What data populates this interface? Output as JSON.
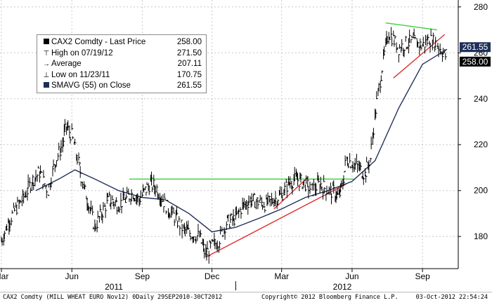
{
  "legend": {
    "rows": [
      {
        "icon": "black-square-icon",
        "label": "CAX2 Comdty - Last Price",
        "value": "258.00"
      },
      {
        "icon": "high-marker-icon",
        "label": "High on 07/19/12",
        "value": "271.50"
      },
      {
        "icon": "average-marker-icon",
        "label": "Average",
        "value": "207.11"
      },
      {
        "icon": "low-marker-icon",
        "label": "Low on 11/23/11",
        "value": "170.75"
      },
      {
        "icon": "navy-square-icon",
        "label": "SMAVG (55) on Close",
        "value": "261.55"
      }
    ]
  },
  "footer": {
    "left": "CAX2 Comdty (MILL WHEAT EURO  Nov12) 0Daily 29SEP2010-30CT2012",
    "center": "Copyright© 2012 Bloomberg Finance L.P.",
    "right": "03-Oct-2012 22:54:24"
  },
  "colors": {
    "price": "#000000",
    "sma": "#1f2f5a",
    "resistance": "#3ecf3e",
    "support": "#e03030",
    "grid": "#c8c8c8"
  },
  "chart_data": {
    "type": "line",
    "title": "",
    "xlabel": "",
    "ylabel": "",
    "ylim": [
      166,
      283
    ],
    "x_range": [
      "2011-03-01",
      "2012-10-03"
    ],
    "y_ticks": [
      180,
      200,
      220,
      240,
      260,
      280
    ],
    "x_ticks": [
      {
        "label": "Mar",
        "date": "2011-03-01"
      },
      {
        "label": "Jun",
        "date": "2011-06-01"
      },
      {
        "label": "Sep",
        "date": "2011-09-01"
      },
      {
        "label": "Dec",
        "date": "2011-12-01"
      },
      {
        "label": "Mar",
        "date": "2012-03-01"
      },
      {
        "label": "Jun",
        "date": "2012-06-01"
      },
      {
        "label": "Sep",
        "date": "2012-09-01"
      }
    ],
    "year_labels": [
      {
        "label": "2011",
        "date": "2011-07-15"
      },
      {
        "label": "2012",
        "date": "2012-07-15"
      }
    ],
    "grid": true,
    "last_price_tags": [
      {
        "value": 261.55,
        "label": "261.55",
        "style": "navy"
      },
      {
        "value": 258.0,
        "label": "258.00",
        "style": "black"
      }
    ],
    "series": [
      {
        "name": "CAX2 Comdty - Last Price",
        "style": "bars",
        "points": [
          [
            "2011-03-01",
            178
          ],
          [
            "2011-03-10",
            186
          ],
          [
            "2011-03-20",
            192
          ],
          [
            "2011-04-01",
            198
          ],
          [
            "2011-04-10",
            204
          ],
          [
            "2011-04-20",
            208
          ],
          [
            "2011-05-01",
            200
          ],
          [
            "2011-05-10",
            212
          ],
          [
            "2011-05-20",
            220
          ],
          [
            "2011-05-25",
            228
          ],
          [
            "2011-06-01",
            224
          ],
          [
            "2011-06-10",
            212
          ],
          [
            "2011-06-15",
            204
          ],
          [
            "2011-06-20",
            198
          ],
          [
            "2011-06-25",
            192
          ],
          [
            "2011-07-01",
            184
          ],
          [
            "2011-07-10",
            190
          ],
          [
            "2011-07-20",
            196
          ],
          [
            "2011-08-01",
            194
          ],
          [
            "2011-08-10",
            196
          ],
          [
            "2011-08-20",
            199
          ],
          [
            "2011-08-28",
            196
          ],
          [
            "2011-09-05",
            200
          ],
          [
            "2011-09-12",
            203
          ],
          [
            "2011-09-20",
            201
          ],
          [
            "2011-09-28",
            196
          ],
          [
            "2011-10-05",
            192
          ],
          [
            "2011-10-15",
            188
          ],
          [
            "2011-10-25",
            183
          ],
          [
            "2011-11-05",
            181
          ],
          [
            "2011-11-15",
            180
          ],
          [
            "2011-11-23",
            172
          ],
          [
            "2011-12-01",
            176
          ],
          [
            "2011-12-10",
            178
          ],
          [
            "2011-12-20",
            186
          ],
          [
            "2012-01-01",
            188
          ],
          [
            "2012-01-10",
            193
          ],
          [
            "2012-01-20",
            196
          ],
          [
            "2012-02-01",
            195
          ],
          [
            "2012-02-10",
            194
          ],
          [
            "2012-02-20",
            196
          ],
          [
            "2012-03-01",
            198
          ],
          [
            "2012-03-10",
            203
          ],
          [
            "2012-03-20",
            205
          ],
          [
            "2012-04-01",
            203
          ],
          [
            "2012-04-10",
            200
          ],
          [
            "2012-04-20",
            203
          ],
          [
            "2012-05-01",
            200
          ],
          [
            "2012-05-10",
            199
          ],
          [
            "2012-05-15",
            197
          ],
          [
            "2012-05-20",
            203
          ],
          [
            "2012-05-25",
            214
          ],
          [
            "2012-06-01",
            212
          ],
          [
            "2012-06-10",
            210
          ],
          [
            "2012-06-18",
            207
          ],
          [
            "2012-06-25",
            214
          ],
          [
            "2012-07-01",
            232
          ],
          [
            "2012-07-08",
            248
          ],
          [
            "2012-07-15",
            262
          ],
          [
            "2012-07-19",
            269
          ],
          [
            "2012-07-25",
            266
          ],
          [
            "2012-08-01",
            262
          ],
          [
            "2012-08-10",
            264
          ],
          [
            "2012-08-20",
            265
          ],
          [
            "2012-09-01",
            263
          ],
          [
            "2012-09-10",
            266
          ],
          [
            "2012-09-20",
            264
          ],
          [
            "2012-10-03",
            258
          ]
        ]
      },
      {
        "name": "SMAVG (55) on Close",
        "style": "line",
        "points": [
          [
            "2011-04-15",
            200
          ],
          [
            "2011-05-15",
            205
          ],
          [
            "2011-06-05",
            209
          ],
          [
            "2011-07-01",
            205
          ],
          [
            "2011-08-01",
            200
          ],
          [
            "2011-09-01",
            197
          ],
          [
            "2011-10-01",
            196
          ],
          [
            "2011-11-01",
            190
          ],
          [
            "2011-12-01",
            182
          ],
          [
            "2012-01-01",
            184
          ],
          [
            "2012-02-01",
            188
          ],
          [
            "2012-03-01",
            192
          ],
          [
            "2012-04-01",
            197
          ],
          [
            "2012-05-01",
            200
          ],
          [
            "2012-06-01",
            204
          ],
          [
            "2012-07-01",
            213
          ],
          [
            "2012-08-01",
            236
          ],
          [
            "2012-09-01",
            255
          ],
          [
            "2012-10-03",
            261.55
          ]
        ]
      }
    ],
    "annotations": [
      {
        "type": "trendline",
        "color": "resistance",
        "from": [
          "2011-08-15",
          205
        ],
        "to": [
          "2012-06-05",
          205
        ]
      },
      {
        "type": "trendline",
        "color": "resistance",
        "from": [
          "2012-07-15",
          273
        ],
        "to": [
          "2012-09-20",
          270
        ]
      },
      {
        "type": "trendline",
        "color": "support",
        "from": [
          "2011-11-23",
          171
        ],
        "to": [
          "2012-05-25",
          203
        ]
      },
      {
        "type": "trendline",
        "color": "support",
        "from": [
          "2012-02-20",
          192
        ],
        "to": [
          "2012-04-05",
          206
        ]
      },
      {
        "type": "trendline",
        "color": "support",
        "from": [
          "2012-07-25",
          249
        ],
        "to": [
          "2012-09-30",
          268
        ]
      }
    ]
  }
}
